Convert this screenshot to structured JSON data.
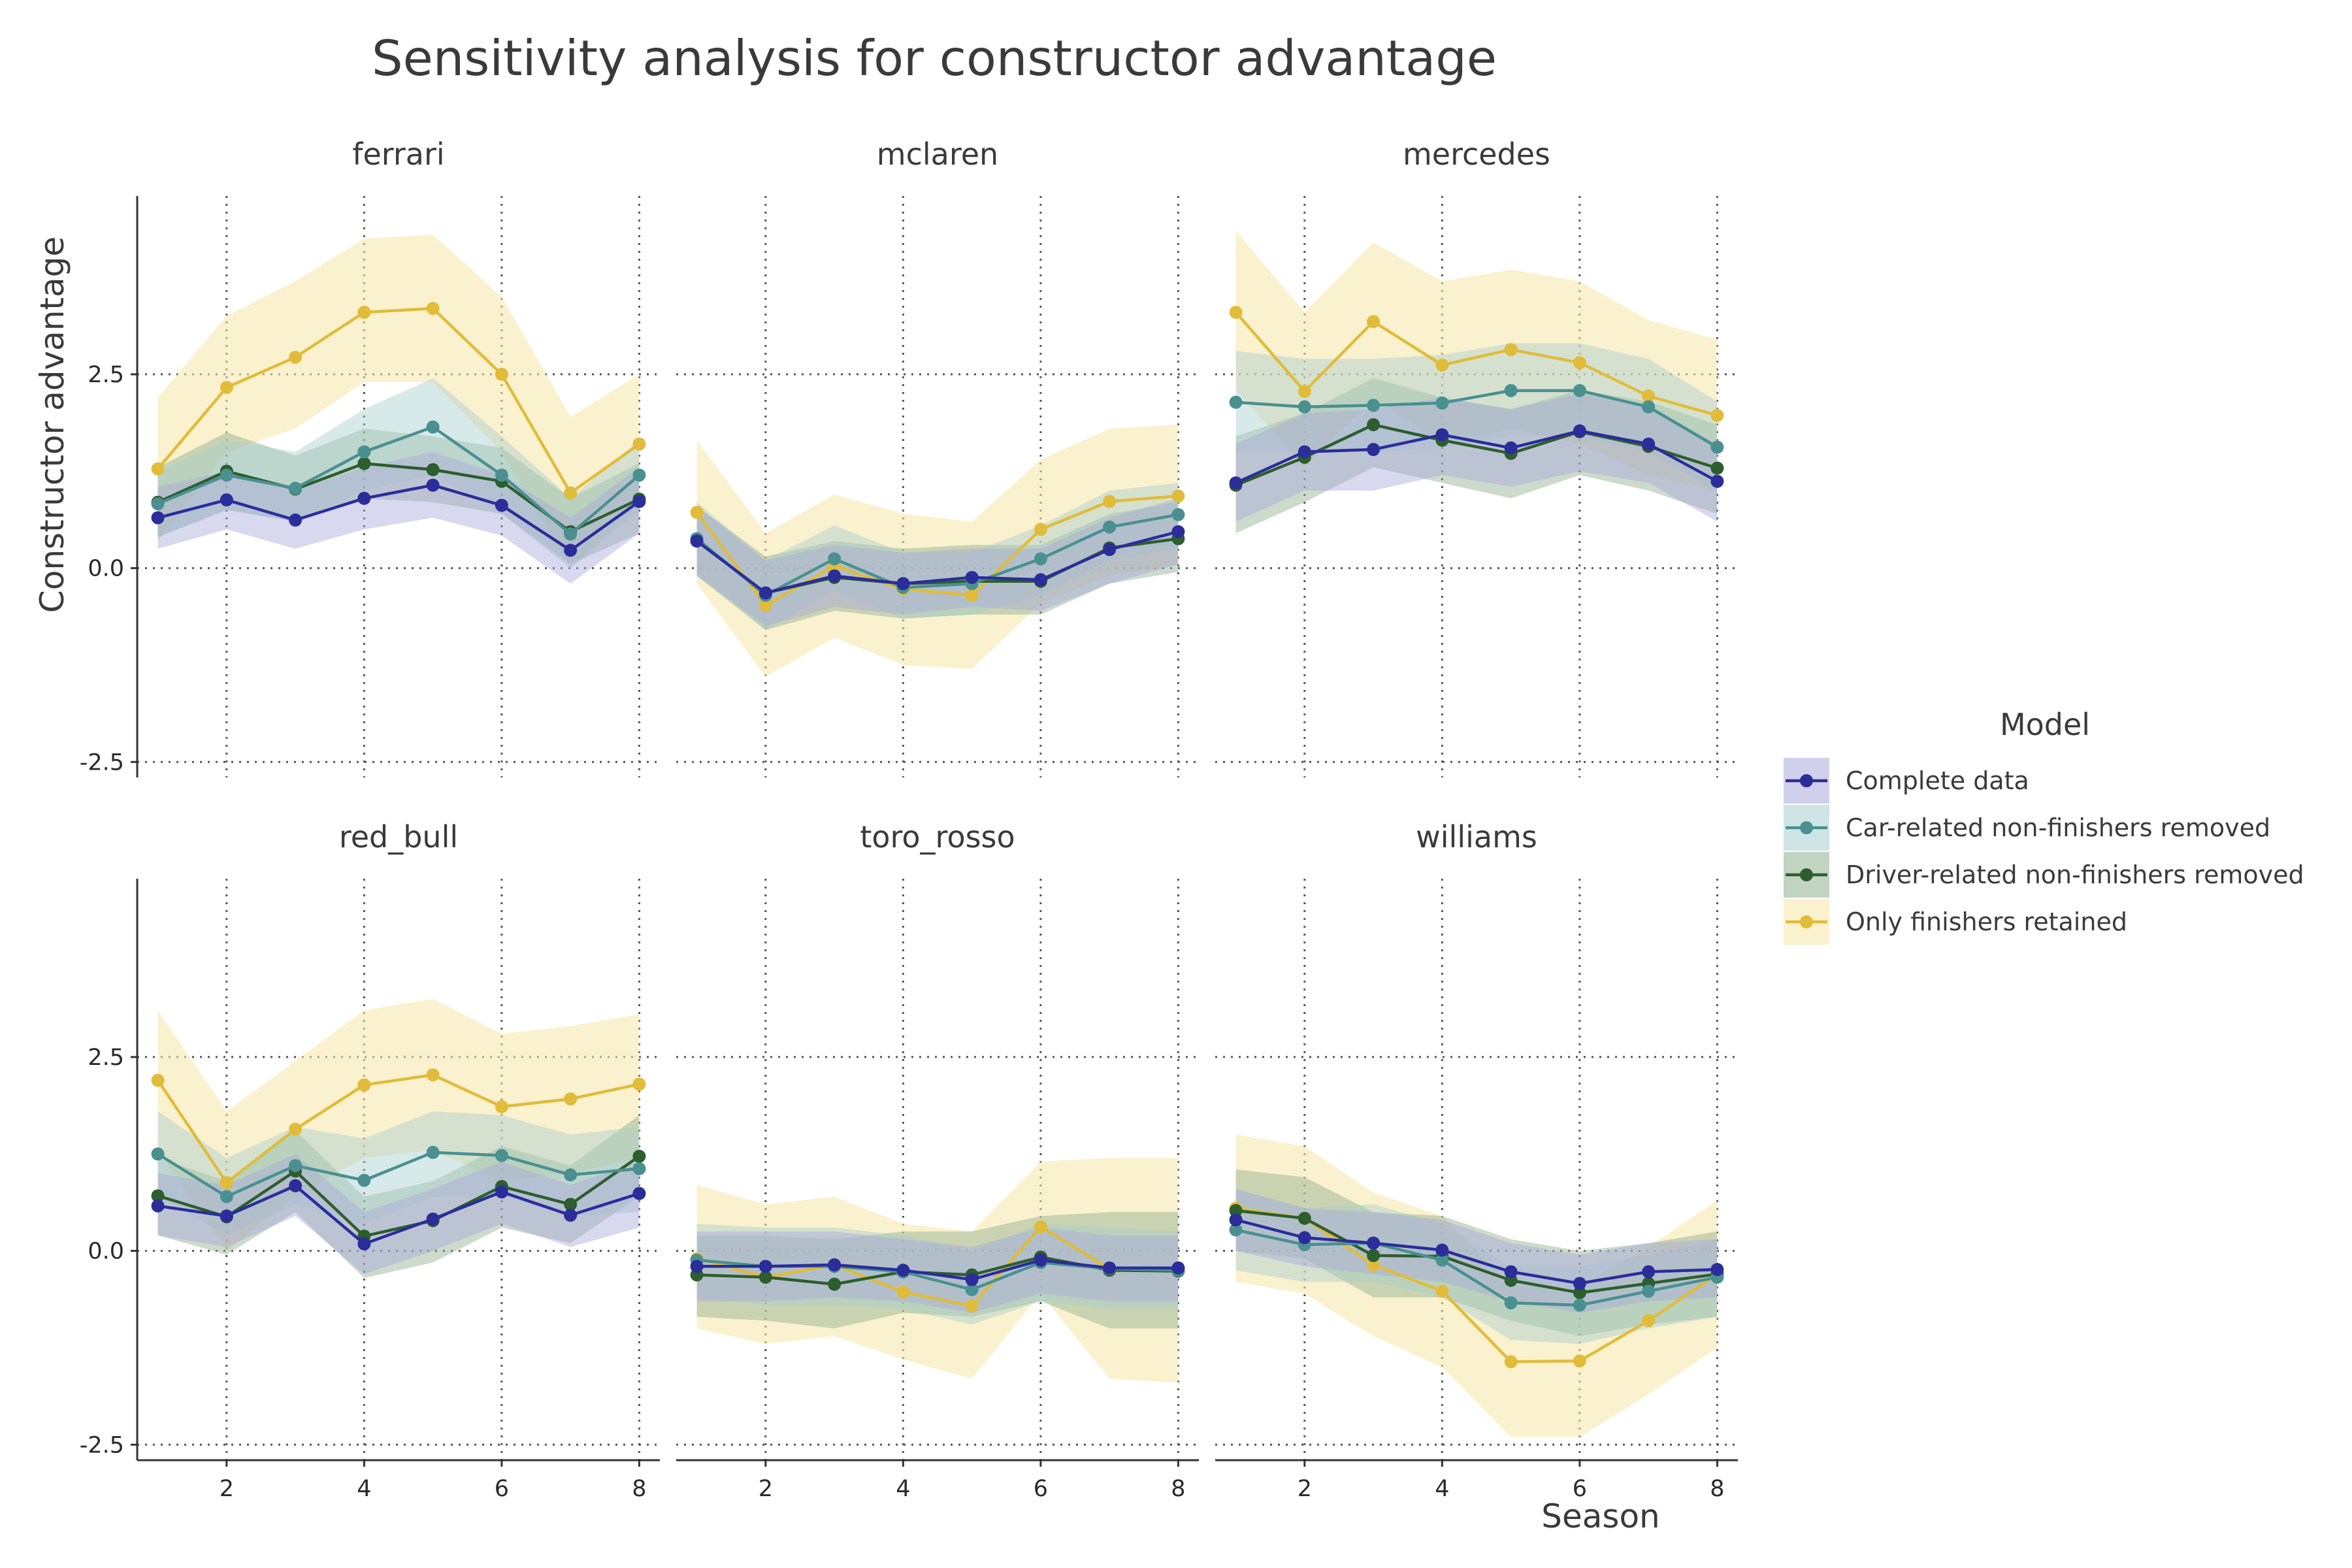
{
  "chart_data": {
    "type": "line",
    "title": "Sensitivity analysis for constructor advantage",
    "xlabel": "Season",
    "ylabel": "Constructor advantage",
    "x": [
      1,
      2,
      3,
      4,
      5,
      6,
      7,
      8
    ],
    "xlim": [
      0.7,
      8.3
    ],
    "ylim": [
      -2.7,
      4.8
    ],
    "xticks": [
      2,
      4,
      6,
      8
    ],
    "xtick_labels": [
      "2",
      "4",
      "6",
      "8"
    ],
    "yticks": [
      -2.5,
      0,
      2.5
    ],
    "ytick_labels": [
      "-2.5",
      "0.0",
      "2.5"
    ],
    "grid": true,
    "legend": {
      "title": "Model",
      "placement": "right",
      "entries": [
        "Complete data",
        "Car-related non-finishers removed",
        "Driver-related non-finishers removed",
        "Only finishers retained"
      ]
    },
    "series_colors": [
      "#2b2d9a",
      "#4a9090",
      "#2d5e2d",
      "#e0bc3a"
    ],
    "band_colors": [
      "#a9a9dc",
      "#a8cfcf",
      "#8fb08f",
      "#f6e5a6"
    ],
    "panels": [
      {
        "name": "ferrari",
        "series": [
          {
            "values": [
              0.65,
              0.88,
              0.62,
              0.9,
              1.07,
              0.81,
              0.23,
              0.86
            ],
            "lower": [
              0.25,
              0.5,
              0.25,
              0.5,
              0.65,
              0.42,
              -0.2,
              0.45
            ],
            "upper": [
              1.05,
              1.25,
              1.0,
              1.3,
              1.5,
              1.2,
              0.65,
              1.3
            ]
          },
          {
            "values": [
              0.83,
              1.2,
              1.03,
              1.5,
              1.82,
              1.2,
              0.44,
              1.2
            ],
            "lower": [
              0.4,
              0.75,
              0.6,
              1.0,
              1.2,
              0.7,
              0.0,
              0.75
            ],
            "upper": [
              1.25,
              1.65,
              1.5,
              2.05,
              2.45,
              1.7,
              0.9,
              1.65
            ]
          },
          {
            "values": [
              0.85,
              1.25,
              1.02,
              1.35,
              1.27,
              1.12,
              0.47,
              0.89
            ],
            "lower": [
              0.4,
              0.75,
              0.6,
              0.9,
              0.85,
              0.7,
              0.05,
              0.45
            ],
            "upper": [
              1.3,
              1.75,
              1.45,
              1.8,
              1.7,
              1.55,
              0.9,
              1.35
            ]
          },
          {
            "values": [
              1.28,
              2.33,
              2.72,
              3.3,
              3.35,
              2.5,
              0.97,
              1.6
            ],
            "lower": [
              0.35,
              1.5,
              1.8,
              2.4,
              2.4,
              1.5,
              0.0,
              0.8
            ],
            "upper": [
              2.2,
              3.25,
              3.7,
              4.25,
              4.3,
              3.5,
              1.95,
              2.5
            ]
          }
        ]
      },
      {
        "name": "mclaren",
        "series": [
          {
            "values": [
              0.35,
              -0.32,
              -0.1,
              -0.2,
              -0.12,
              -0.15,
              0.24,
              0.47
            ],
            "lower": [
              -0.1,
              -0.75,
              -0.5,
              -0.6,
              -0.5,
              -0.55,
              -0.2,
              0.05
            ],
            "upper": [
              0.8,
              0.1,
              0.3,
              0.2,
              0.25,
              0.25,
              0.65,
              0.9
            ]
          },
          {
            "values": [
              0.38,
              -0.35,
              0.12,
              -0.25,
              -0.2,
              0.12,
              0.53,
              0.69
            ],
            "lower": [
              -0.05,
              -0.8,
              -0.3,
              -0.65,
              -0.6,
              -0.35,
              0.1,
              0.25
            ],
            "upper": [
              0.85,
              0.1,
              0.55,
              0.2,
              0.2,
              0.55,
              1.0,
              1.1
            ]
          },
          {
            "values": [
              0.35,
              -0.32,
              -0.12,
              -0.2,
              -0.17,
              -0.17,
              0.26,
              0.38
            ],
            "lower": [
              -0.1,
              -0.8,
              -0.55,
              -0.65,
              -0.6,
              -0.6,
              -0.2,
              -0.05
            ],
            "upper": [
              0.8,
              0.15,
              0.35,
              0.25,
              0.3,
              0.3,
              0.7,
              0.85
            ]
          },
          {
            "values": [
              0.72,
              -0.48,
              0.03,
              -0.27,
              -0.35,
              0.5,
              0.86,
              0.93
            ],
            "lower": [
              -0.2,
              -1.4,
              -0.9,
              -1.25,
              -1.3,
              -0.45,
              -0.1,
              0.05
            ],
            "upper": [
              1.65,
              0.45,
              0.95,
              0.7,
              0.6,
              1.4,
              1.8,
              1.85
            ]
          }
        ]
      },
      {
        "name": "mercedes",
        "series": [
          {
            "values": [
              1.1,
              1.5,
              1.53,
              1.72,
              1.55,
              1.77,
              1.6,
              1.12
            ],
            "lower": [
              0.6,
              1.0,
              1.0,
              1.2,
              1.05,
              1.25,
              1.1,
              0.6
            ],
            "upper": [
              1.6,
              2.0,
              2.05,
              2.2,
              2.05,
              2.25,
              2.1,
              1.6
            ]
          },
          {
            "values": [
              2.14,
              2.08,
              2.1,
              2.13,
              2.29,
              2.29,
              2.08,
              1.56
            ],
            "lower": [
              1.5,
              1.5,
              1.5,
              1.55,
              1.7,
              1.7,
              1.5,
              1.0
            ],
            "upper": [
              2.8,
              2.7,
              2.7,
              2.75,
              2.9,
              2.9,
              2.7,
              2.15
            ]
          },
          {
            "values": [
              1.07,
              1.43,
              1.85,
              1.65,
              1.48,
              1.76,
              1.57,
              1.29
            ],
            "lower": [
              0.45,
              0.85,
              1.3,
              1.1,
              0.9,
              1.2,
              1.0,
              0.7
            ],
            "upper": [
              1.7,
              2.0,
              2.45,
              2.2,
              2.05,
              2.3,
              2.15,
              1.85
            ]
          },
          {
            "values": [
              3.3,
              2.28,
              3.18,
              2.62,
              2.82,
              2.65,
              2.22,
              1.97
            ],
            "lower": [
              2.3,
              1.3,
              2.2,
              1.6,
              1.8,
              1.6,
              1.2,
              1.0
            ],
            "upper": [
              4.35,
              3.3,
              4.2,
              3.7,
              3.85,
              3.7,
              3.2,
              2.95
            ]
          }
        ]
      },
      {
        "name": "red_bull",
        "series": [
          {
            "values": [
              0.58,
              0.45,
              0.84,
              0.09,
              0.41,
              0.76,
              0.46,
              0.74
            ],
            "lower": [
              0.2,
              0.05,
              0.45,
              -0.3,
              0.0,
              0.35,
              0.05,
              0.3
            ],
            "upper": [
              1.0,
              0.85,
              1.25,
              0.5,
              0.8,
              1.15,
              0.85,
              1.15
            ]
          },
          {
            "values": [
              1.25,
              0.7,
              1.1,
              0.91,
              1.27,
              1.23,
              0.98,
              1.06
            ],
            "lower": [
              0.7,
              0.2,
              0.6,
              0.35,
              0.7,
              0.7,
              0.45,
              0.5
            ],
            "upper": [
              1.8,
              1.2,
              1.6,
              1.45,
              1.8,
              1.75,
              1.5,
              1.6
            ]
          },
          {
            "values": [
              0.71,
              0.44,
              1.03,
              0.19,
              0.39,
              0.83,
              0.6,
              1.22
            ],
            "lower": [
              0.2,
              -0.05,
              0.5,
              -0.35,
              -0.15,
              0.3,
              0.1,
              0.7
            ],
            "upper": [
              1.2,
              0.9,
              1.55,
              0.7,
              0.9,
              1.35,
              1.1,
              1.75
            ]
          },
          {
            "values": [
              2.2,
              0.88,
              1.57,
              2.14,
              2.27,
              1.86,
              1.96,
              2.15
            ],
            "lower": [
              1.3,
              0.0,
              0.7,
              1.2,
              1.3,
              0.9,
              1.0,
              1.2
            ],
            "upper": [
              3.1,
              1.8,
              2.45,
              3.1,
              3.25,
              2.8,
              2.9,
              3.05
            ]
          }
        ]
      },
      {
        "name": "toro_rosso",
        "series": [
          {
            "values": [
              -0.2,
              -0.2,
              -0.18,
              -0.25,
              -0.37,
              -0.12,
              -0.22,
              -0.22
            ],
            "lower": [
              -0.65,
              -0.65,
              -0.6,
              -0.65,
              -0.8,
              -0.55,
              -0.65,
              -0.65
            ],
            "upper": [
              0.25,
              0.25,
              0.25,
              0.15,
              0.05,
              0.3,
              0.2,
              0.2
            ]
          },
          {
            "values": [
              -0.12,
              -0.2,
              -0.2,
              -0.27,
              -0.5,
              -0.15,
              -0.23,
              -0.25
            ],
            "lower": [
              -0.6,
              -0.7,
              -0.7,
              -0.75,
              -0.95,
              -0.65,
              -0.75,
              -0.75
            ],
            "upper": [
              0.35,
              0.3,
              0.3,
              0.2,
              0.0,
              0.35,
              0.3,
              0.25
            ]
          },
          {
            "values": [
              -0.31,
              -0.34,
              -0.43,
              -0.27,
              -0.31,
              -0.08,
              -0.25,
              -0.26
            ],
            "lower": [
              -0.85,
              -0.9,
              -1.0,
              -0.8,
              -0.85,
              -0.65,
              -1.0,
              -1.0
            ],
            "upper": [
              0.2,
              0.2,
              0.15,
              0.25,
              0.25,
              0.45,
              0.5,
              0.5
            ]
          },
          {
            "values": [
              -0.1,
              -0.34,
              -0.18,
              -0.53,
              -0.71,
              0.31,
              -0.23,
              -0.26
            ],
            "lower": [
              -1.0,
              -1.2,
              -1.1,
              -1.4,
              -1.65,
              -0.55,
              -1.65,
              -1.7
            ],
            "upper": [
              0.85,
              0.6,
              0.7,
              0.35,
              0.25,
              1.15,
              1.2,
              1.2
            ]
          }
        ]
      },
      {
        "name": "williams",
        "series": [
          {
            "values": [
              0.4,
              0.17,
              0.1,
              0.01,
              -0.27,
              -0.42,
              -0.27,
              -0.24
            ],
            "lower": [
              0.0,
              -0.2,
              -0.3,
              -0.4,
              -0.65,
              -0.8,
              -0.65,
              -0.6
            ],
            "upper": [
              0.8,
              0.55,
              0.5,
              0.4,
              0.1,
              -0.05,
              0.1,
              0.15
            ]
          },
          {
            "values": [
              0.27,
              0.08,
              0.1,
              -0.12,
              -0.67,
              -0.7,
              -0.52,
              -0.34
            ],
            "lower": [
              -0.25,
              -0.4,
              -0.4,
              -0.6,
              -1.15,
              -1.2,
              -1.0,
              -0.85
            ],
            "upper": [
              0.8,
              0.55,
              0.6,
              0.35,
              -0.2,
              -0.2,
              -0.05,
              0.15
            ]
          },
          {
            "values": [
              0.52,
              0.42,
              -0.06,
              -0.07,
              -0.38,
              -0.54,
              -0.42,
              -0.3
            ],
            "lower": [
              0.0,
              -0.1,
              -0.6,
              -0.6,
              -0.9,
              -1.1,
              -0.95,
              -0.85
            ],
            "upper": [
              1.05,
              0.95,
              0.5,
              0.45,
              0.15,
              0.0,
              0.1,
              0.25
            ]
          },
          {
            "values": [
              0.55,
              0.42,
              -0.18,
              -0.52,
              -1.43,
              -1.42,
              -0.9,
              -0.3
            ],
            "lower": [
              -0.4,
              -0.55,
              -1.1,
              -1.5,
              -2.4,
              -2.4,
              -1.85,
              -1.25
            ],
            "upper": [
              1.5,
              1.35,
              0.75,
              0.45,
              -0.45,
              -0.45,
              0.05,
              0.65
            ]
          }
        ]
      }
    ]
  }
}
